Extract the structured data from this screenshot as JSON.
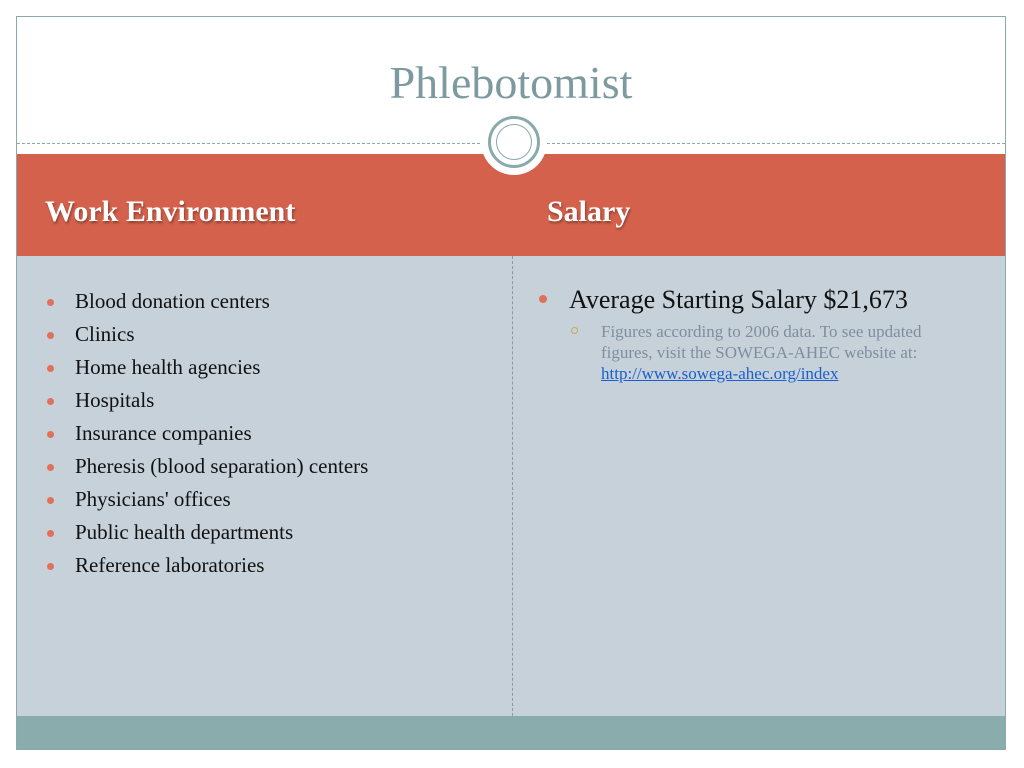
{
  "slide": {
    "title": "Phlebotomist",
    "columns": {
      "left_header": "Work Environment",
      "right_header": "Salary"
    },
    "work_environment": [
      "Blood donation centers",
      "Clinics",
      "Home health agencies",
      "Hospitals",
      "Insurance companies",
      "Pheresis (blood separation) centers",
      "Physicians' offices",
      "Public health departments",
      "Reference laboratories"
    ],
    "salary": {
      "main": "Average Starting Salary $21,673",
      "note": "Figures according to 2006 data. To see updated figures, visit the SOWEGA-AHEC website at:",
      "link_text": "http://www.sowega-ahec.org/index"
    }
  },
  "colors": {
    "header_band": "#d4614b",
    "body_background": "#c6d1d9",
    "footer_band": "#8aacad",
    "title_text": "#7c9aa0",
    "bullet": "#e0705a",
    "link": "#1a5fcf"
  },
  "icons": {
    "ornament": "circle-ornament-icon",
    "bullet": "round-bullet-icon",
    "sub_bullet": "ring-bullet-icon"
  }
}
